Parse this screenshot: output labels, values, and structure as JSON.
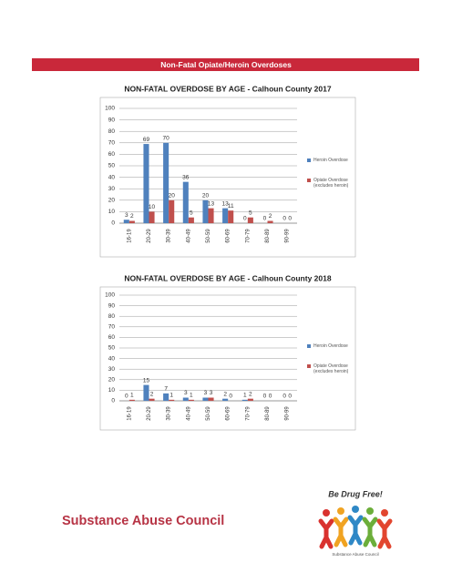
{
  "header": {
    "title": "Non-Fatal Opiate/Heroin Overdoses"
  },
  "chart_data": [
    {
      "type": "bar",
      "title": "NON-FATAL OVERDOSE BY AGE - Calhoun County 2017",
      "categories": [
        "16-19",
        "20-29",
        "30-39",
        "40-49",
        "50-59",
        "60-69",
        "70-79",
        "80-89",
        "90-99"
      ],
      "series": [
        {
          "name": "Heroin Overdose",
          "color": "#4f81bd",
          "values": [
            3,
            69,
            70,
            36,
            20,
            13,
            0,
            0,
            0
          ]
        },
        {
          "name": "Opiate Overdose (excludes heroin)",
          "color": "#c0504d",
          "values": [
            2,
            10,
            20,
            5,
            13,
            11,
            5,
            2,
            0
          ]
        }
      ],
      "ylim": [
        0,
        100
      ],
      "yticks": [
        0,
        10,
        20,
        30,
        40,
        50,
        60,
        70,
        80,
        90,
        100
      ],
      "grid": true,
      "legend": "right"
    },
    {
      "type": "bar",
      "title": "NON-FATAL OVERDOSE BY AGE - Calhoun County 2018",
      "categories": [
        "16-19",
        "20-29",
        "30-39",
        "40-49",
        "50-59",
        "60-69",
        "70-79",
        "80-89",
        "90-99"
      ],
      "series": [
        {
          "name": "Heroin Overdose",
          "color": "#4f81bd",
          "values": [
            0,
            15,
            7,
            3,
            3,
            2,
            1,
            0,
            0
          ]
        },
        {
          "name": "Opiate Overdose (excludes heroin)",
          "color": "#c0504d",
          "values": [
            1,
            2,
            1,
            1,
            3,
            0,
            2,
            0,
            0
          ]
        }
      ],
      "ylim": [
        0,
        100
      ],
      "yticks": [
        0,
        10,
        20,
        30,
        40,
        50,
        60,
        70,
        80,
        90,
        100
      ],
      "grid": true,
      "legend": "right"
    }
  ],
  "footer": {
    "organization": "Substance Abuse Council",
    "logo_title": "Be Drug Free!",
    "logo_caption": "Substance Abuse Council"
  }
}
